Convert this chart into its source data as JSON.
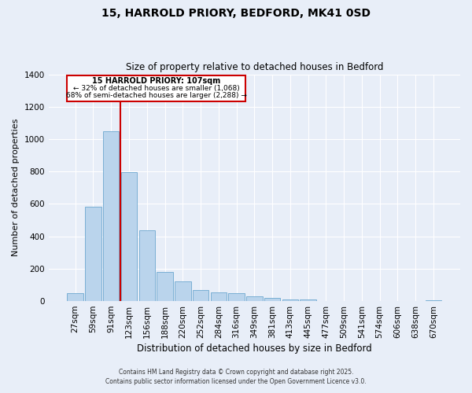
{
  "title_line1": "15, HARROLD PRIORY, BEDFORD, MK41 0SD",
  "title_line2": "Size of property relative to detached houses in Bedford",
  "xlabel": "Distribution of detached houses by size in Bedford",
  "ylabel": "Number of detached properties",
  "bar_labels": [
    "27sqm",
    "59sqm",
    "91sqm",
    "123sqm",
    "156sqm",
    "188sqm",
    "220sqm",
    "252sqm",
    "284sqm",
    "316sqm",
    "349sqm",
    "381sqm",
    "413sqm",
    "445sqm",
    "477sqm",
    "509sqm",
    "541sqm",
    "574sqm",
    "606sqm",
    "638sqm",
    "670sqm"
  ],
  "bar_values": [
    50,
    585,
    1048,
    795,
    435,
    178,
    122,
    68,
    55,
    48,
    30,
    18,
    12,
    8,
    0,
    0,
    0,
    0,
    0,
    0,
    5
  ],
  "bar_color": "#bad4ec",
  "bar_edge_color": "#7aafd4",
  "ylim": [
    0,
    1400
  ],
  "yticks": [
    0,
    200,
    400,
    600,
    800,
    1000,
    1200,
    1400
  ],
  "marker_label": "15 HARROLD PRIORY: 107sqm",
  "annotation_line1": "← 32% of detached houses are smaller (1,068)",
  "annotation_line2": "68% of semi-detached houses are larger (2,288) →",
  "box_color": "#cc0000",
  "footnote1": "Contains HM Land Registry data © Crown copyright and database right 2025.",
  "footnote2": "Contains public sector information licensed under the Open Government Licence v3.0.",
  "bg_color": "#e8eef8",
  "grid_color": "#ffffff"
}
